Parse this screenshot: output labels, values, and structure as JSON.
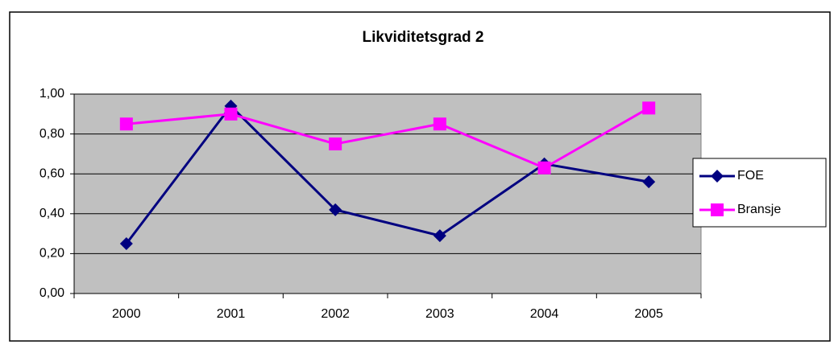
{
  "chart_data": {
    "type": "line",
    "title": "Likviditetsgrad 2",
    "categories": [
      "2000",
      "2001",
      "2002",
      "2003",
      "2004",
      "2005"
    ],
    "series": [
      {
        "name": "FOE",
        "color": "#000080",
        "marker": "diamond",
        "values": [
          0.25,
          0.94,
          0.42,
          0.29,
          0.65,
          0.56
        ]
      },
      {
        "name": "Bransje",
        "color": "#FF00FF",
        "marker": "square",
        "values": [
          0.85,
          0.9,
          0.75,
          0.85,
          0.63,
          0.93
        ]
      }
    ],
    "ylim": [
      0,
      1
    ],
    "yticks": [
      {
        "value": 0,
        "label": "0,00"
      },
      {
        "value": 0.2,
        "label": "0,20"
      },
      {
        "value": 0.4,
        "label": "0,40"
      },
      {
        "value": 0.6,
        "label": "0,60"
      },
      {
        "value": 0.8,
        "label": "0,80"
      },
      {
        "value": 1,
        "label": "1,00"
      }
    ],
    "grid": true,
    "legend": "right"
  }
}
